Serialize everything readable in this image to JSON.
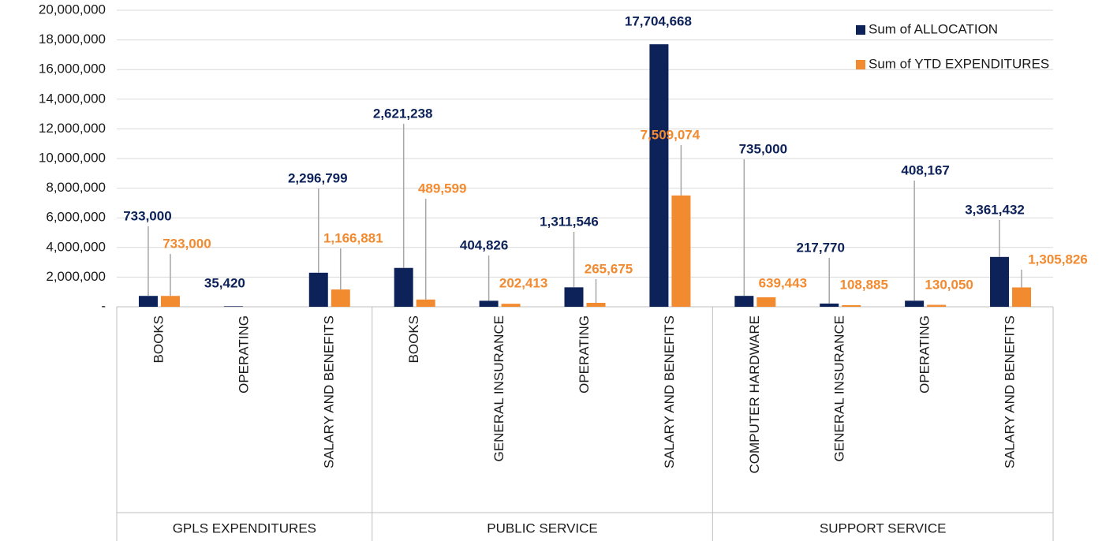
{
  "chart_data": {
    "type": "bar",
    "groups": [
      {
        "name": "GPLS EXPENDITURES",
        "size": 3
      },
      {
        "name": "PUBLIC SERVICE",
        "size": 4
      },
      {
        "name": "SUPPORT SERVICE",
        "size": 4
      }
    ],
    "categories": [
      "BOOKS",
      "OPERATING",
      "SALARY AND BENEFITS",
      "BOOKS",
      "GENERAL INSURANCE",
      "OPERATING",
      "SALARY AND BENEFITS",
      "COMPUTER HARDWARE",
      "GENERAL INSURANCE",
      "OPERATING",
      "SALARY AND BENEFITS"
    ],
    "series": [
      {
        "name": "Sum of ALLOCATION",
        "color": "#0d2259",
        "values": [
          733000,
          35420,
          2296799,
          2621238,
          404826,
          1311546,
          17704668,
          735000,
          217770,
          408167,
          3361432
        ],
        "value_labels": [
          "733,000",
          "35,420",
          "2,296,799",
          "2,621,238",
          "404,826",
          "1,311,546",
          "17,704,668",
          "735,000",
          "217,770",
          "408,167",
          "3,361,432"
        ]
      },
      {
        "name": "Sum of YTD EXPENDITURES",
        "color": "#f28a30",
        "values": [
          733000,
          null,
          1166881,
          489599,
          202413,
          265675,
          7509074,
          639443,
          108885,
          130050,
          1305826
        ],
        "value_labels": [
          "733,000",
          null,
          "1,166,881",
          "489,599",
          "202,413",
          "265,675",
          "7,509,074",
          "639,443",
          "108,885",
          "130,050",
          "1,305,826"
        ]
      }
    ],
    "ylim": [
      0,
      20000000
    ],
    "yticks": [
      {
        "value": 0,
        "label": "-"
      },
      {
        "value": 2000000,
        "label": "2,000,000"
      },
      {
        "value": 4000000,
        "label": "4,000,000"
      },
      {
        "value": 6000000,
        "label": "6,000,000"
      },
      {
        "value": 8000000,
        "label": "8,000,000"
      },
      {
        "value": 10000000,
        "label": "10,000,000"
      },
      {
        "value": 12000000,
        "label": "12,000,000"
      },
      {
        "value": 14000000,
        "label": "14,000,000"
      },
      {
        "value": 16000000,
        "label": "16,000,000"
      },
      {
        "value": 18000000,
        "label": "18,000,000"
      },
      {
        "value": 20000000,
        "label": "20,000,000"
      }
    ],
    "grid": true,
    "legend": "top-right"
  }
}
